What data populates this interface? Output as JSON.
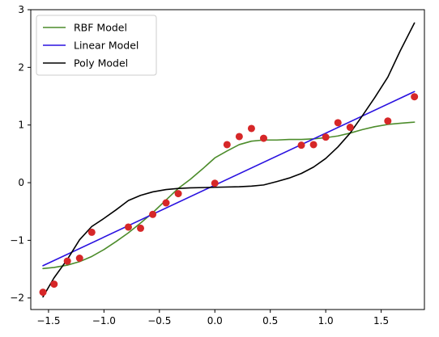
{
  "chart_data": {
    "type": "scatter",
    "title": "",
    "xlabel": "",
    "ylabel": "",
    "xlim": [
      -1.66,
      1.89
    ],
    "ylim": [
      -2.2,
      3.0
    ],
    "grid": false,
    "x_ticks": [
      -1.5,
      -1.0,
      -0.5,
      0.0,
      0.5,
      1.0,
      1.5
    ],
    "x_tick_labels": [
      "−1.5",
      "−1.0",
      "−0.5",
      "0.0",
      "0.5",
      "1.0",
      "1.5"
    ],
    "y_ticks": [
      -2,
      -1,
      0,
      1,
      2,
      3
    ],
    "y_tick_labels": [
      "−2",
      "−1",
      "0",
      "1",
      "2",
      "3"
    ],
    "legend_position": "top-left",
    "scatter": {
      "color": "#d62728",
      "points": [
        [
          -1.55,
          -1.9
        ],
        [
          -1.45,
          -1.76
        ],
        [
          -1.33,
          -1.36
        ],
        [
          -1.22,
          -1.31
        ],
        [
          -1.11,
          -0.86
        ],
        [
          -0.78,
          -0.77
        ],
        [
          -0.67,
          -0.79
        ],
        [
          -0.56,
          -0.55
        ],
        [
          -0.44,
          -0.35
        ],
        [
          -0.33,
          -0.19
        ],
        [
          0.0,
          -0.01
        ],
        [
          0.11,
          0.66
        ],
        [
          0.22,
          0.8
        ],
        [
          0.33,
          0.94
        ],
        [
          0.44,
          0.77
        ],
        [
          0.78,
          0.65
        ],
        [
          0.89,
          0.66
        ],
        [
          1.0,
          0.79
        ],
        [
          1.11,
          1.04
        ],
        [
          1.22,
          0.96
        ],
        [
          1.56,
          1.07
        ],
        [
          1.8,
          1.49
        ]
      ]
    },
    "series": [
      {
        "name": "RBF Model",
        "color": "#4c8c2b",
        "points": [
          [
            -1.55,
            -1.49
          ],
          [
            -1.45,
            -1.47
          ],
          [
            -1.33,
            -1.43
          ],
          [
            -1.22,
            -1.37
          ],
          [
            -1.11,
            -1.28
          ],
          [
            -1.0,
            -1.16
          ],
          [
            -0.89,
            -1.02
          ],
          [
            -0.78,
            -0.87
          ],
          [
            -0.67,
            -0.7
          ],
          [
            -0.56,
            -0.52
          ],
          [
            -0.44,
            -0.3
          ],
          [
            -0.33,
            -0.1
          ],
          [
            -0.22,
            0.06
          ],
          [
            -0.11,
            0.24
          ],
          [
            0.0,
            0.43
          ],
          [
            0.11,
            0.55
          ],
          [
            0.22,
            0.66
          ],
          [
            0.33,
            0.72
          ],
          [
            0.44,
            0.74
          ],
          [
            0.56,
            0.74
          ],
          [
            0.67,
            0.75
          ],
          [
            0.78,
            0.75
          ],
          [
            0.89,
            0.76
          ],
          [
            1.0,
            0.78
          ],
          [
            1.11,
            0.81
          ],
          [
            1.22,
            0.86
          ],
          [
            1.33,
            0.92
          ],
          [
            1.44,
            0.97
          ],
          [
            1.56,
            1.01
          ],
          [
            1.67,
            1.03
          ],
          [
            1.8,
            1.05
          ]
        ]
      },
      {
        "name": "Linear Model",
        "color": "#2a12e0",
        "points": [
          [
            -1.55,
            -1.44
          ],
          [
            1.8,
            1.58
          ]
        ]
      },
      {
        "name": "Poly Model",
        "color": "#000000",
        "points": [
          [
            -1.55,
            -1.98
          ],
          [
            -1.45,
            -1.65
          ],
          [
            -1.33,
            -1.33
          ],
          [
            -1.22,
            -0.99
          ],
          [
            -1.11,
            -0.76
          ],
          [
            -1.0,
            -0.62
          ],
          [
            -0.89,
            -0.47
          ],
          [
            -0.78,
            -0.31
          ],
          [
            -0.67,
            -0.22
          ],
          [
            -0.56,
            -0.16
          ],
          [
            -0.44,
            -0.12
          ],
          [
            -0.33,
            -0.1
          ],
          [
            -0.22,
            -0.09
          ],
          [
            0.0,
            -0.08
          ],
          [
            0.22,
            -0.07
          ],
          [
            0.33,
            -0.06
          ],
          [
            0.44,
            -0.04
          ],
          [
            0.56,
            0.02
          ],
          [
            0.67,
            0.08
          ],
          [
            0.78,
            0.16
          ],
          [
            0.89,
            0.27
          ],
          [
            1.0,
            0.42
          ],
          [
            1.11,
            0.62
          ],
          [
            1.22,
            0.86
          ],
          [
            1.33,
            1.16
          ],
          [
            1.44,
            1.47
          ],
          [
            1.56,
            1.83
          ],
          [
            1.67,
            2.28
          ],
          [
            1.8,
            2.77
          ]
        ]
      }
    ]
  }
}
